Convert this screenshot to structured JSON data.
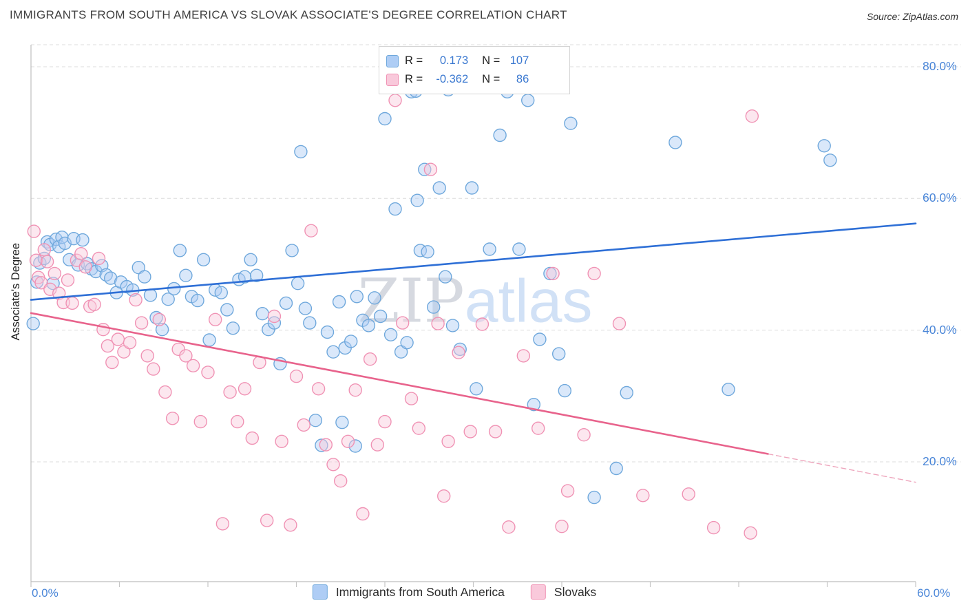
{
  "header": {
    "title": "IMMIGRANTS FROM SOUTH AMERICA VS SLOVAK ASSOCIATE'S DEGREE CORRELATION CHART",
    "source": "Source: ZipAtlas.com"
  },
  "watermark": {
    "part1": "ZIP",
    "part2": "atlas"
  },
  "legend_box": {
    "rows": [
      {
        "r_label": "R =",
        "r_value": "0.173",
        "n_label": "N =",
        "n_value": "107"
      },
      {
        "r_label": "R =",
        "r_value": "-0.362",
        "n_label": "N =",
        "n_value": "86"
      }
    ]
  },
  "axes": {
    "y_label": "Associate's Degree",
    "y_ticks": [
      {
        "value": 80,
        "label": "80.0%"
      },
      {
        "value": 60,
        "label": "60.0%"
      },
      {
        "value": 40,
        "label": "40.0%"
      },
      {
        "value": 20,
        "label": "20.0%"
      }
    ],
    "x_min_label": "0.0%",
    "x_max_label": "60.0%"
  },
  "bottom_legend": [
    {
      "label": "Immigrants from South America"
    },
    {
      "label": "Slovaks"
    }
  ],
  "colors": {
    "accent_blue": "#3a78d0",
    "tick_label_blue": "#4a86d8",
    "marker_blue_fill": "#aecdf5",
    "marker_blue_stroke": "#6fa8dc",
    "marker_pink_fill": "#f9c9db",
    "marker_pink_stroke": "#f092b4",
    "trend_blue": "#2e6fd6",
    "trend_pink": "#e8638c",
    "grid": "#dcdcdc",
    "axis": "#bdbdbd"
  },
  "chart_data": {
    "type": "scatter",
    "title": "Immigrants from South America vs Slovak Associate's Degree",
    "xlabel": "",
    "ylabel": "Associate's Degree",
    "x_range": [
      0,
      60
    ],
    "y_range": [
      0,
      84
    ],
    "y_grid_values": [
      80,
      60,
      40,
      20
    ],
    "x_tick_values": [
      0,
      6,
      12,
      18,
      24,
      30,
      36,
      42,
      48,
      54,
      60
    ],
    "legend_position": "bottom",
    "grid": true,
    "series": [
      {
        "id": "south-america",
        "name": "Immigrants from South America",
        "R": 0.173,
        "N": 107,
        "fill": "#aecdf5",
        "stroke": "#6fa8dc",
        "points": [
          [
            0.15,
            41.0
          ],
          [
            0.4,
            47.3
          ],
          [
            0.6,
            50.2
          ],
          [
            0.9,
            50.9
          ],
          [
            1.1,
            53.4
          ],
          [
            1.3,
            53.0
          ],
          [
            1.5,
            47.1
          ],
          [
            1.7,
            53.8
          ],
          [
            1.9,
            52.7
          ],
          [
            2.1,
            54.1
          ],
          [
            2.3,
            53.2
          ],
          [
            2.6,
            50.7
          ],
          [
            2.9,
            53.9
          ],
          [
            3.2,
            49.9
          ],
          [
            3.5,
            53.7
          ],
          [
            3.8,
            50.1
          ],
          [
            4.1,
            49.3
          ],
          [
            4.4,
            48.9
          ],
          [
            4.8,
            49.8
          ],
          [
            5.1,
            48.4
          ],
          [
            5.4,
            47.9
          ],
          [
            5.8,
            45.7
          ],
          [
            6.1,
            47.3
          ],
          [
            6.5,
            46.6
          ],
          [
            6.9,
            46.1
          ],
          [
            7.3,
            49.5
          ],
          [
            7.7,
            48.1
          ],
          [
            8.1,
            45.3
          ],
          [
            8.5,
            41.9
          ],
          [
            8.9,
            40.1
          ],
          [
            9.3,
            44.7
          ],
          [
            9.7,
            46.3
          ],
          [
            10.1,
            52.1
          ],
          [
            10.5,
            48.3
          ],
          [
            10.9,
            45.1
          ],
          [
            11.3,
            44.5
          ],
          [
            11.7,
            50.7
          ],
          [
            12.1,
            38.5
          ],
          [
            12.5,
            46.1
          ],
          [
            12.9,
            45.7
          ],
          [
            13.3,
            43.1
          ],
          [
            13.7,
            40.3
          ],
          [
            14.1,
            47.7
          ],
          [
            14.5,
            48.1
          ],
          [
            14.9,
            50.7
          ],
          [
            15.3,
            48.3
          ],
          [
            15.7,
            42.5
          ],
          [
            16.1,
            40.1
          ],
          [
            16.5,
            41.1
          ],
          [
            16.9,
            34.9
          ],
          [
            17.3,
            44.1
          ],
          [
            17.7,
            52.1
          ],
          [
            18.1,
            47.1
          ],
          [
            18.3,
            67.1
          ],
          [
            18.6,
            43.3
          ],
          [
            18.9,
            41.1
          ],
          [
            19.3,
            26.3
          ],
          [
            19.7,
            22.5
          ],
          [
            20.1,
            39.7
          ],
          [
            20.5,
            36.7
          ],
          [
            20.9,
            44.3
          ],
          [
            21.1,
            26.0
          ],
          [
            21.3,
            37.3
          ],
          [
            21.7,
            38.3
          ],
          [
            22.0,
            22.4
          ],
          [
            22.1,
            45.1
          ],
          [
            22.5,
            41.5
          ],
          [
            22.9,
            40.7
          ],
          [
            23.3,
            44.9
          ],
          [
            23.7,
            42.1
          ],
          [
            24.0,
            72.1
          ],
          [
            24.4,
            39.3
          ],
          [
            24.7,
            58.4
          ],
          [
            25.1,
            36.7
          ],
          [
            25.5,
            38.1
          ],
          [
            25.8,
            76.2
          ],
          [
            26.1,
            76.3
          ],
          [
            26.2,
            59.7
          ],
          [
            26.4,
            52.1
          ],
          [
            26.7,
            64.4
          ],
          [
            26.9,
            51.9
          ],
          [
            27.3,
            43.5
          ],
          [
            27.7,
            61.6
          ],
          [
            28.1,
            48.1
          ],
          [
            28.3,
            76.5
          ],
          [
            28.6,
            40.7
          ],
          [
            29.1,
            37.1
          ],
          [
            29.9,
            61.6
          ],
          [
            30.2,
            31.1
          ],
          [
            31.1,
            52.3
          ],
          [
            31.8,
            69.6
          ],
          [
            32.3,
            76.2
          ],
          [
            33.1,
            52.3
          ],
          [
            33.7,
            74.9
          ],
          [
            34.1,
            28.7
          ],
          [
            34.5,
            38.6
          ],
          [
            35.2,
            48.6
          ],
          [
            35.8,
            36.4
          ],
          [
            36.2,
            30.8
          ],
          [
            36.6,
            71.4
          ],
          [
            38.2,
            14.6
          ],
          [
            39.7,
            19.0
          ],
          [
            40.4,
            30.5
          ],
          [
            43.7,
            68.5
          ],
          [
            47.3,
            31.0
          ],
          [
            53.8,
            68.0
          ],
          [
            54.2,
            65.8
          ]
        ]
      },
      {
        "id": "slovaks",
        "name": "Slovaks",
        "R": -0.362,
        "N": 86,
        "fill": "#f9c9db",
        "stroke": "#f092b4",
        "points": [
          [
            0.2,
            55.0
          ],
          [
            0.35,
            50.6
          ],
          [
            0.5,
            48.0
          ],
          [
            0.7,
            47.2
          ],
          [
            0.9,
            52.2
          ],
          [
            1.1,
            50.4
          ],
          [
            1.3,
            46.2
          ],
          [
            1.6,
            48.6
          ],
          [
            1.9,
            45.6
          ],
          [
            2.2,
            44.2
          ],
          [
            2.5,
            47.6
          ],
          [
            2.8,
            44.1
          ],
          [
            3.1,
            50.6
          ],
          [
            3.4,
            51.6
          ],
          [
            3.7,
            49.6
          ],
          [
            4.0,
            43.6
          ],
          [
            4.3,
            43.9
          ],
          [
            4.6,
            50.9
          ],
          [
            4.9,
            40.1
          ],
          [
            5.2,
            37.6
          ],
          [
            5.5,
            35.1
          ],
          [
            5.9,
            38.6
          ],
          [
            6.3,
            36.7
          ],
          [
            6.7,
            38.1
          ],
          [
            7.1,
            44.6
          ],
          [
            7.5,
            41.1
          ],
          [
            7.9,
            36.1
          ],
          [
            8.3,
            34.1
          ],
          [
            8.7,
            41.6
          ],
          [
            9.1,
            30.6
          ],
          [
            9.6,
            26.6
          ],
          [
            10.0,
            37.1
          ],
          [
            10.5,
            36.1
          ],
          [
            11.0,
            34.6
          ],
          [
            11.5,
            26.1
          ],
          [
            12.0,
            33.6
          ],
          [
            12.5,
            41.6
          ],
          [
            13.0,
            10.6
          ],
          [
            13.5,
            30.6
          ],
          [
            14.0,
            26.1
          ],
          [
            14.5,
            31.1
          ],
          [
            15.0,
            23.6
          ],
          [
            15.5,
            35.1
          ],
          [
            16.0,
            11.1
          ],
          [
            16.5,
            42.1
          ],
          [
            17.0,
            23.1
          ],
          [
            17.6,
            10.4
          ],
          [
            18.0,
            33.0
          ],
          [
            18.5,
            25.6
          ],
          [
            19.0,
            55.1
          ],
          [
            19.5,
            31.1
          ],
          [
            20.0,
            22.6
          ],
          [
            20.5,
            19.6
          ],
          [
            21.0,
            17.1
          ],
          [
            21.5,
            23.1
          ],
          [
            22.0,
            30.9
          ],
          [
            22.5,
            12.1
          ],
          [
            23.0,
            35.6
          ],
          [
            23.5,
            22.6
          ],
          [
            24.0,
            26.1
          ],
          [
            24.7,
            74.9
          ],
          [
            25.2,
            41.1
          ],
          [
            25.8,
            29.6
          ],
          [
            26.3,
            25.1
          ],
          [
            27.1,
            64.4
          ],
          [
            27.6,
            41.0
          ],
          [
            28.0,
            14.8
          ],
          [
            28.3,
            23.1
          ],
          [
            29.0,
            36.6
          ],
          [
            29.8,
            24.6
          ],
          [
            30.6,
            40.9
          ],
          [
            31.5,
            24.6
          ],
          [
            32.4,
            10.1
          ],
          [
            33.4,
            36.1
          ],
          [
            34.4,
            25.1
          ],
          [
            35.4,
            48.6
          ],
          [
            36.0,
            10.2
          ],
          [
            36.4,
            15.6
          ],
          [
            37.5,
            24.1
          ],
          [
            38.2,
            48.6
          ],
          [
            39.9,
            41.0
          ],
          [
            41.5,
            14.9
          ],
          [
            44.6,
            15.1
          ],
          [
            46.3,
            10.0
          ],
          [
            48.8,
            9.2
          ],
          [
            48.9,
            72.5
          ]
        ]
      }
    ],
    "trend_lines": [
      {
        "series": "south-america",
        "style": "solid",
        "color": "#2e6fd6",
        "start": [
          0,
          44.6
        ],
        "end": [
          60,
          56.2
        ]
      },
      {
        "series": "slovaks",
        "style": "solid",
        "color": "#e8638c",
        "start": [
          0,
          42.6
        ],
        "end": [
          50,
          21.2
        ]
      },
      {
        "series": "slovaks",
        "style": "dashed",
        "color": "#eea6bd",
        "start": [
          50,
          21.2
        ],
        "end": [
          60,
          16.9
        ]
      }
    ]
  }
}
